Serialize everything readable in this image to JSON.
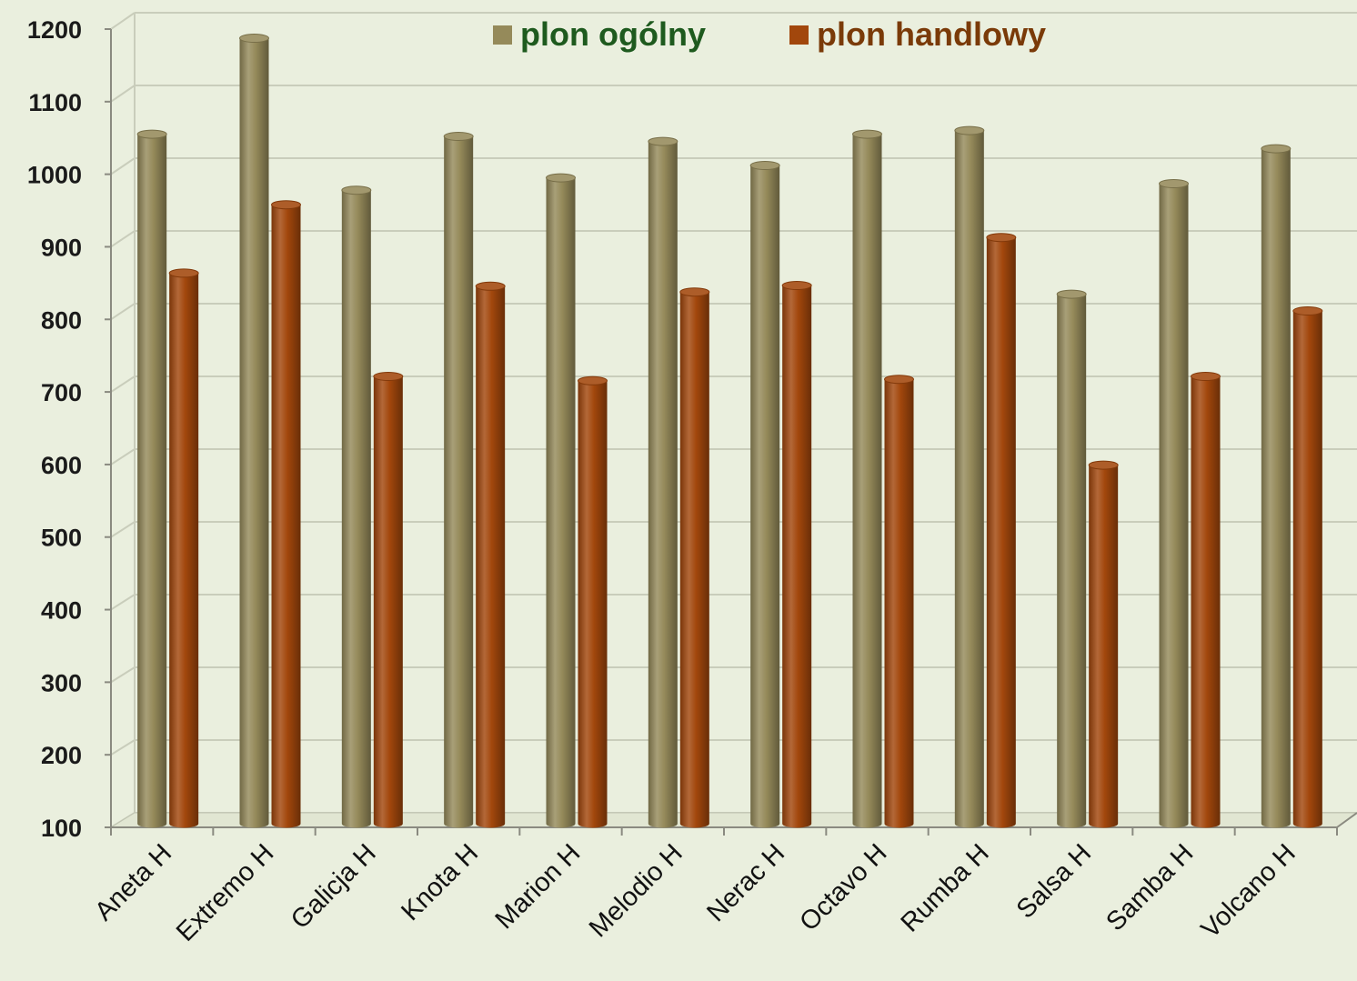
{
  "chart_data": {
    "type": "bar",
    "categories": [
      "Aneta H",
      "Extremo H",
      "Galicja H",
      "Knota H",
      "Marion H",
      "Melodio H",
      "Nerac H",
      "Octavo H",
      "Rumba H",
      "Salsa H",
      "Samba H",
      "Volcano H"
    ],
    "series": [
      {
        "name": "plon ogólny",
        "color": "#958a5a",
        "label_color": "#1e5a1e",
        "values": [
          1043,
          1175,
          966,
          1040,
          983,
          1033,
          1000,
          1043,
          1048,
          823,
          975,
          1023
        ]
      },
      {
        "name": "plon handlowy",
        "color": "#a2470c",
        "label_color": "#7a3a08",
        "values": [
          852,
          946,
          710,
          834,
          704,
          826,
          835,
          706,
          901,
          588,
          710,
          800
        ]
      }
    ],
    "y_ticks": [
      "100",
      "200",
      "300",
      "400",
      "500",
      "600",
      "700",
      "800",
      "900",
      "1000",
      "1100",
      "1200"
    ],
    "ylim": [
      100,
      1200
    ],
    "grid": true,
    "legend_position": "top",
    "title": "",
    "xlabel": "",
    "ylabel": ""
  }
}
